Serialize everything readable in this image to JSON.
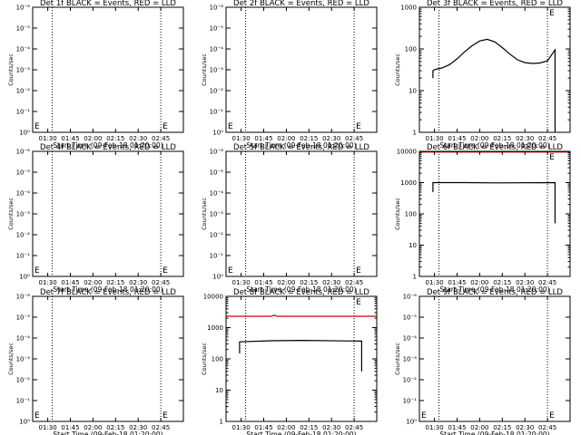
{
  "x_axis": {
    "ticks": [
      "01:30",
      "01:45",
      "02:00",
      "02:15",
      "02:30",
      "02:45"
    ],
    "label": "Start Time (09-Feb-18 01:20:00)"
  },
  "y_label": "Counts/sec",
  "exp_ticks": [
    "10⁰",
    "10⁻¹",
    "10⁻²",
    "10⁻³",
    "10⁻⁴",
    "10⁻⁵",
    "10⁻⁶"
  ],
  "dec_ticks": [
    "1",
    "10",
    "100",
    "1000",
    "10000"
  ],
  "marker_label": "E",
  "colors": {
    "events": "#000000",
    "lld": "#cc0000",
    "frame": "#000000"
  },
  "chart_data": [
    {
      "type": "line",
      "title": "Det 1f BLACK = Events, RED = LLD",
      "x_range_min": [
        0,
        100
      ],
      "yscale": "exp",
      "ylim": [
        1e-06,
        1.0
      ],
      "vlines_min": [
        13,
        85
      ],
      "series": []
    },
    {
      "type": "line",
      "title": "Det 2f BLACK = Events, RED = LLD",
      "x_range_min": [
        0,
        100
      ],
      "yscale": "exp",
      "ylim": [
        1e-06,
        1.0
      ],
      "vlines_min": [
        13,
        85
      ],
      "series": []
    },
    {
      "type": "line",
      "title": "Det 3f BLACK = Events, RED = LLD",
      "x_range_min": [
        0,
        100
      ],
      "yscale": "log",
      "ylim": [
        1,
        1000
      ],
      "vlines_min": [
        13,
        85
      ],
      "series": [
        {
          "color": "#000000",
          "x": [
            9,
            9,
            10,
            15,
            20,
            25,
            30,
            35,
            40,
            45,
            50,
            55,
            60,
            65,
            70,
            75,
            80,
            85,
            90,
            90
          ],
          "y": [
            20,
            30,
            32,
            35,
            42,
            58,
            85,
            120,
            155,
            170,
            148,
            108,
            75,
            55,
            47,
            45,
            46,
            52,
            95,
            1
          ]
        }
      ]
    },
    {
      "type": "line",
      "title": "Det 4f BLACK = Events, RED = LLD",
      "x_range_min": [
        0,
        100
      ],
      "yscale": "exp",
      "ylim": [
        1e-06,
        1.0
      ],
      "vlines_min": [
        13,
        85
      ],
      "series": []
    },
    {
      "type": "line",
      "title": "Det 5f BLACK = Events, RED = LLD",
      "x_range_min": [
        0,
        100
      ],
      "yscale": "exp",
      "ylim": [
        1e-06,
        1.0
      ],
      "vlines_min": [
        13,
        85
      ],
      "series": []
    },
    {
      "type": "line",
      "title": "Det 6f BLACK = Events, RED = LLD",
      "x_range_min": [
        0,
        100
      ],
      "yscale": "log",
      "ylim": [
        1,
        10000
      ],
      "vlines_min": [
        13,
        85
      ],
      "series": [
        {
          "color": "#cc0000",
          "x": [
            0,
            100
          ],
          "y": [
            9500,
            9500
          ]
        },
        {
          "color": "#000000",
          "x": [
            9,
            9,
            30,
            50,
            90,
            90
          ],
          "y": [
            500,
            1000,
            1000,
            980,
            1000,
            50
          ]
        }
      ]
    },
    {
      "type": "line",
      "title": "Det 7f BLACK = Events, RED = LLD",
      "x_range_min": [
        0,
        100
      ],
      "yscale": "exp",
      "ylim": [
        1e-06,
        1.0
      ],
      "vlines_min": [
        13,
        85
      ],
      "series": []
    },
    {
      "type": "line",
      "title": "Det 8f BLACK = Events, RED = LLD",
      "x_range_min": [
        0,
        100
      ],
      "yscale": "log",
      "ylim": [
        1,
        10000
      ],
      "vlines_min": [
        13,
        85
      ],
      "series": [
        {
          "color": "#cc0000",
          "x": [
            0,
            30,
            32,
            34,
            100
          ],
          "y": [
            2300,
            2300,
            2500,
            2300,
            2300
          ]
        },
        {
          "color": "#000000",
          "x": [
            9,
            9,
            30,
            50,
            90,
            90
          ],
          "y": [
            150,
            350,
            380,
            390,
            370,
            40
          ]
        }
      ]
    },
    {
      "type": "line",
      "title": "Det 9f BLACK = Events, RED = LLD",
      "x_range_min": [
        0,
        100
      ],
      "yscale": "exp",
      "ylim": [
        1e-06,
        1.0
      ],
      "vlines_min": [
        13,
        85
      ],
      "series": []
    }
  ]
}
